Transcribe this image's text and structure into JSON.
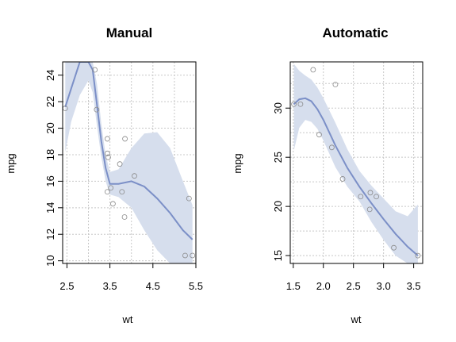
{
  "chart_data": [
    {
      "type": "scatter",
      "title": "Manual",
      "xlabel": "wt",
      "ylabel": "mpg",
      "xlim": [
        2.4,
        5.5
      ],
      "ylim": [
        9.8,
        25
      ],
      "xticks": [
        2.5,
        3.5,
        4.5,
        5.5
      ],
      "xtick_labels": [
        "2.5",
        "3.5",
        "4.5",
        "5.5"
      ],
      "xgrid": [
        2.5,
        3.0,
        3.5,
        4.0,
        4.5,
        5.0,
        5.5
      ],
      "yticks": [
        10,
        12,
        14,
        16,
        18,
        20,
        22,
        24
      ],
      "ytick_labels": [
        "10",
        "12",
        "14",
        "16",
        "18",
        "20",
        "22",
        "24"
      ],
      "grid": true,
      "points": [
        {
          "x": 2.46,
          "y": 21.5
        },
        {
          "x": 3.15,
          "y": 24.4
        },
        {
          "x": 3.19,
          "y": 21.4
        },
        {
          "x": 3.44,
          "y": 19.2
        },
        {
          "x": 3.44,
          "y": 18.1
        },
        {
          "x": 3.46,
          "y": 17.8
        },
        {
          "x": 3.44,
          "y": 15.2
        },
        {
          "x": 3.52,
          "y": 15.5
        },
        {
          "x": 3.57,
          "y": 14.3
        },
        {
          "x": 3.73,
          "y": 17.3
        },
        {
          "x": 3.78,
          "y": 15.2
        },
        {
          "x": 3.84,
          "y": 13.3
        },
        {
          "x": 3.85,
          "y": 19.2
        },
        {
          "x": 4.07,
          "y": 16.4
        },
        {
          "x": 5.25,
          "y": 10.4
        },
        {
          "x": 5.34,
          "y": 14.7
        },
        {
          "x": 5.42,
          "y": 10.4
        }
      ],
      "smooth": [
        {
          "x": 2.46,
          "y": 21.6,
          "lo": 18.2,
          "hi": 25.0
        },
        {
          "x": 2.6,
          "y": 23.0,
          "lo": 20.5,
          "hi": 25.0
        },
        {
          "x": 2.8,
          "y": 25.0,
          "lo": 22.5,
          "hi": 25.0
        },
        {
          "x": 3.0,
          "y": 25.0,
          "lo": 23.6,
          "hi": 25.0
        },
        {
          "x": 3.1,
          "y": 24.4,
          "lo": 22.7,
          "hi": 25.0
        },
        {
          "x": 3.2,
          "y": 21.7,
          "lo": 20.1,
          "hi": 23.3
        },
        {
          "x": 3.3,
          "y": 19.0,
          "lo": 17.8,
          "hi": 20.3
        },
        {
          "x": 3.4,
          "y": 17.0,
          "lo": 16.0,
          "hi": 18.0
        },
        {
          "x": 3.5,
          "y": 15.8,
          "lo": 15.0,
          "hi": 16.7
        },
        {
          "x": 3.7,
          "y": 15.8,
          "lo": 14.8,
          "hi": 16.9
        },
        {
          "x": 4.0,
          "y": 16.0,
          "lo": 14.0,
          "hi": 18.5
        },
        {
          "x": 4.3,
          "y": 15.6,
          "lo": 12.3,
          "hi": 19.6
        },
        {
          "x": 4.6,
          "y": 14.7,
          "lo": 10.8,
          "hi": 19.7
        },
        {
          "x": 4.9,
          "y": 13.6,
          "lo": 9.8,
          "hi": 18.5
        },
        {
          "x": 5.2,
          "y": 12.3,
          "lo": 9.8,
          "hi": 16.0
        },
        {
          "x": 5.42,
          "y": 11.6,
          "lo": 9.8,
          "hi": 14.2
        }
      ]
    },
    {
      "type": "scatter",
      "title": "Automatic",
      "xlabel": "wt",
      "ylabel": "mpg",
      "xlim": [
        1.45,
        3.65
      ],
      "ylim": [
        14.2,
        34.7
      ],
      "xticks": [
        1.5,
        2.0,
        2.5,
        3.0,
        3.5
      ],
      "xtick_labels": [
        "1.5",
        "2.0",
        "2.5",
        "3.0",
        "3.5"
      ],
      "xgrid": [
        1.5,
        2.0,
        2.5,
        3.0,
        3.5
      ],
      "yticks": [
        15,
        20,
        25,
        30
      ],
      "ytick_labels": [
        "15",
        "20",
        "25",
        "30"
      ],
      "ygrid": [
        15,
        17.5,
        20,
        22.5,
        25,
        27.5,
        30,
        32.5
      ],
      "grid": true,
      "points": [
        {
          "x": 1.51,
          "y": 30.4
        },
        {
          "x": 1.62,
          "y": 30.4
        },
        {
          "x": 1.83,
          "y": 33.9
        },
        {
          "x": 1.93,
          "y": 27.3
        },
        {
          "x": 2.14,
          "y": 26.0
        },
        {
          "x": 2.2,
          "y": 32.4
        },
        {
          "x": 2.32,
          "y": 22.8
        },
        {
          "x": 2.62,
          "y": 21.0
        },
        {
          "x": 2.77,
          "y": 19.7
        },
        {
          "x": 2.78,
          "y": 21.4
        },
        {
          "x": 2.88,
          "y": 21.0
        },
        {
          "x": 3.17,
          "y": 15.8
        },
        {
          "x": 3.57,
          "y": 15.0
        }
      ],
      "smooth": [
        {
          "x": 1.51,
          "y": 30.4,
          "lo": 25.7,
          "hi": 34.5
        },
        {
          "x": 1.6,
          "y": 30.9,
          "lo": 28.0,
          "hi": 33.8
        },
        {
          "x": 1.7,
          "y": 31.0,
          "lo": 28.8,
          "hi": 33.3
        },
        {
          "x": 1.8,
          "y": 30.7,
          "lo": 28.6,
          "hi": 32.9
        },
        {
          "x": 1.9,
          "y": 29.9,
          "lo": 27.9,
          "hi": 32.1
        },
        {
          "x": 2.0,
          "y": 28.8,
          "lo": 26.7,
          "hi": 31.0
        },
        {
          "x": 2.2,
          "y": 26.2,
          "lo": 24.0,
          "hi": 28.5
        },
        {
          "x": 2.4,
          "y": 23.9,
          "lo": 22.0,
          "hi": 25.8
        },
        {
          "x": 2.6,
          "y": 22.0,
          "lo": 20.5,
          "hi": 23.6
        },
        {
          "x": 2.8,
          "y": 20.3,
          "lo": 18.4,
          "hi": 22.1
        },
        {
          "x": 3.0,
          "y": 18.7,
          "lo": 16.6,
          "hi": 20.8
        },
        {
          "x": 3.2,
          "y": 17.2,
          "lo": 15.0,
          "hi": 19.5
        },
        {
          "x": 3.4,
          "y": 15.9,
          "lo": 14.2,
          "hi": 19.0
        },
        {
          "x": 3.57,
          "y": 15.0,
          "lo": 14.2,
          "hi": 20.2
        }
      ]
    }
  ]
}
